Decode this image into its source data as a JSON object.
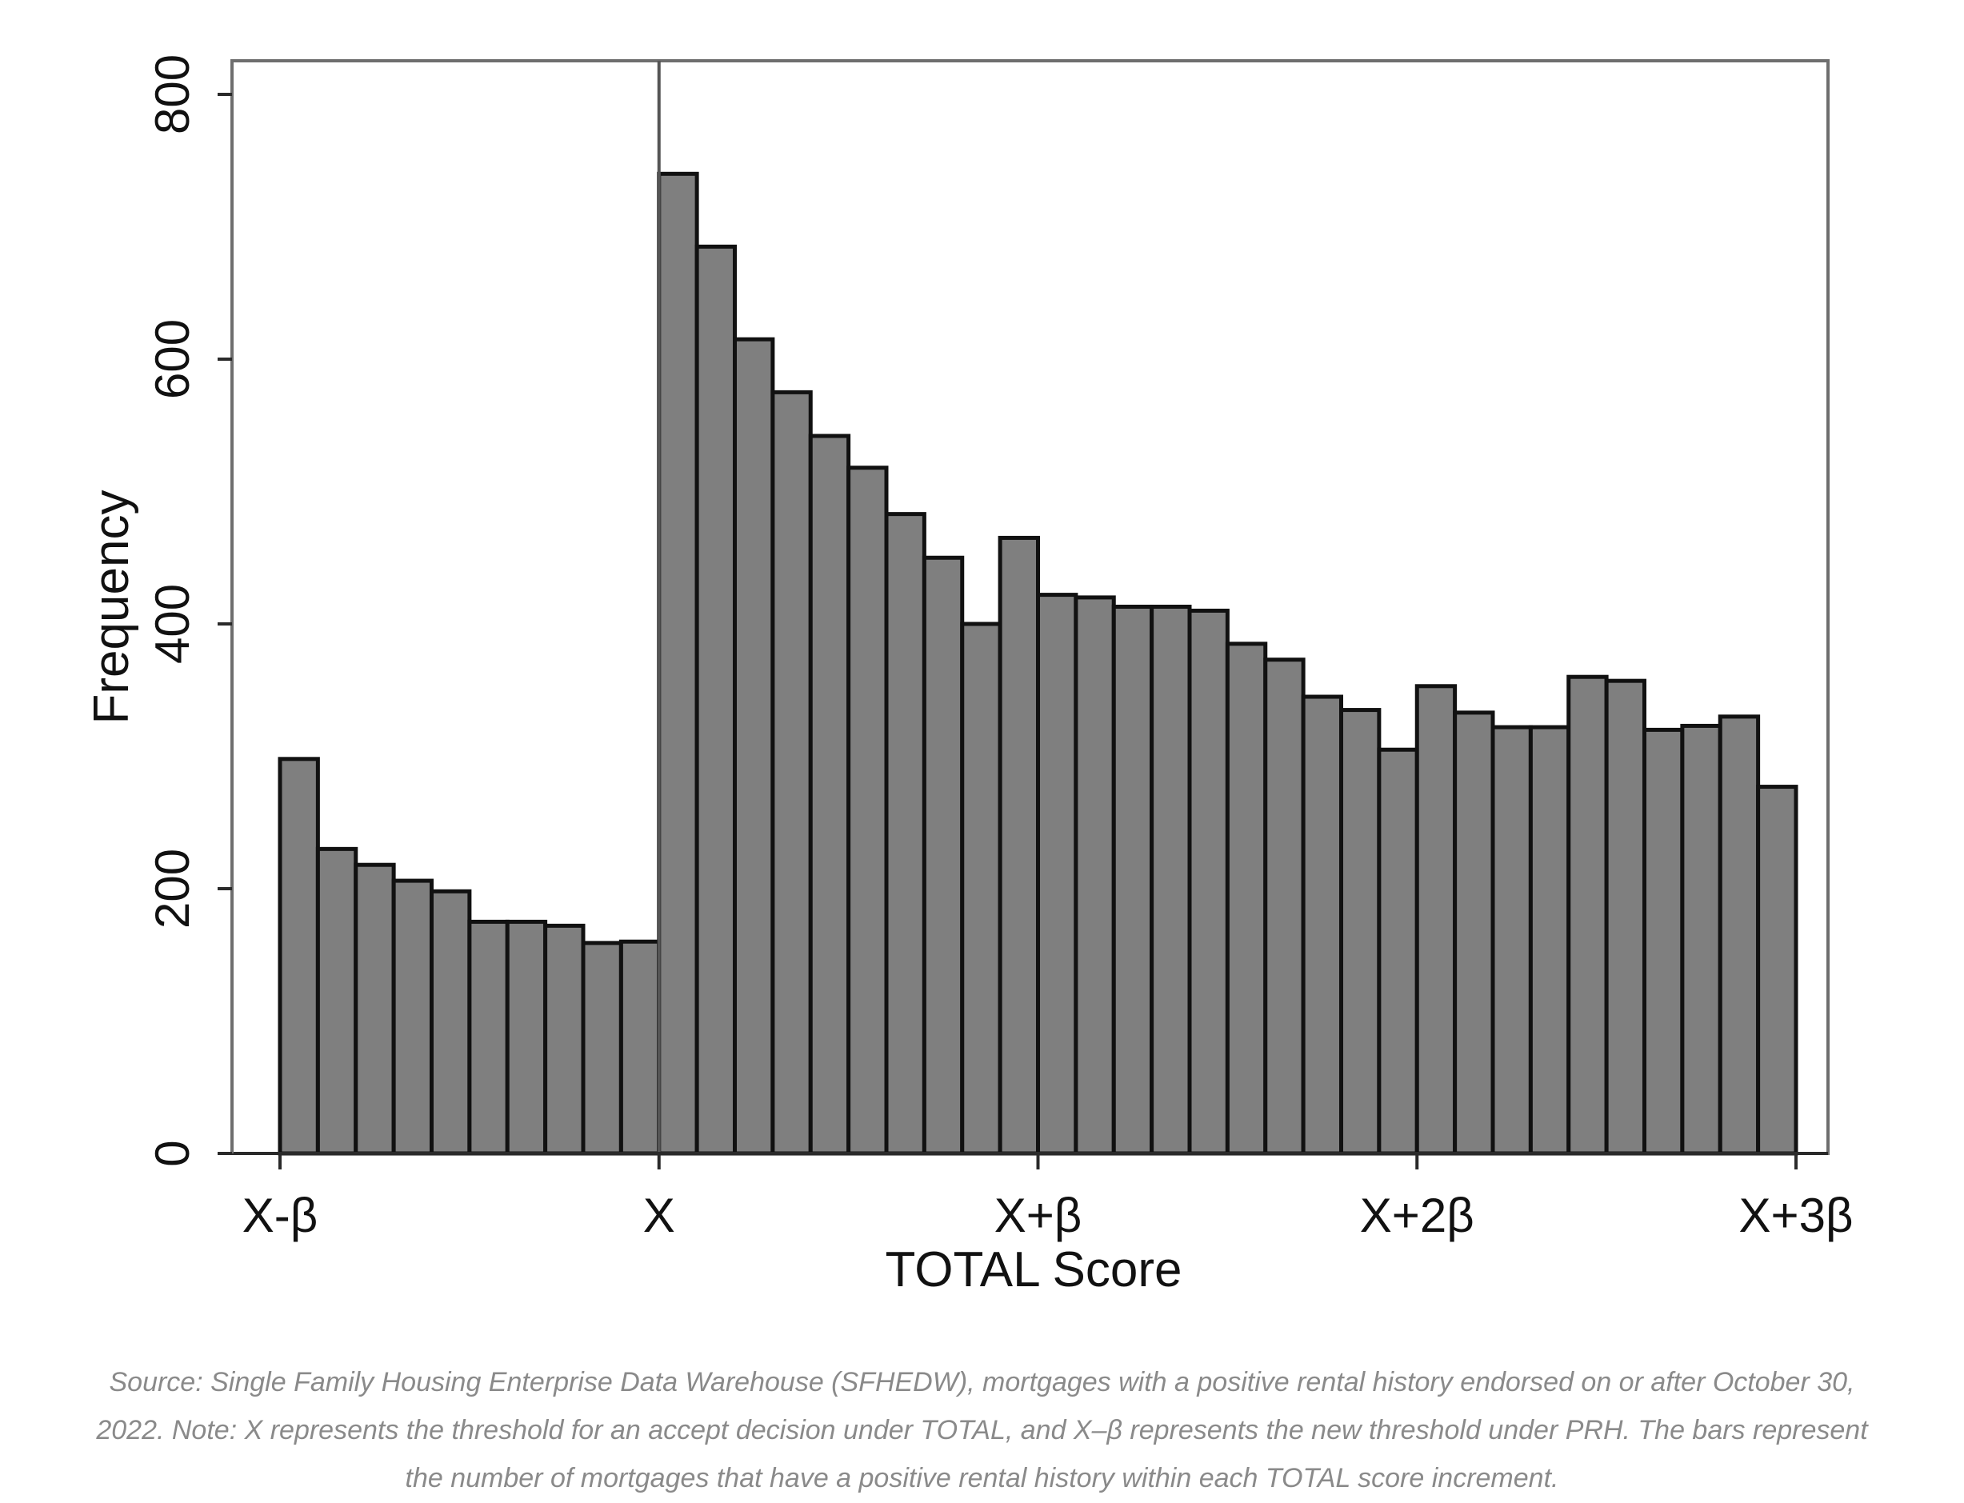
{
  "chart_data": {
    "type": "bar",
    "xlabel": "TOTAL Score",
    "ylabel": "Frequency",
    "ylim": [
      0,
      830
    ],
    "yticks": [
      0,
      200,
      400,
      600,
      800
    ],
    "xtick_labels": [
      "X-β",
      "X",
      "X+β",
      "X+2β",
      "X+3β"
    ],
    "threshold_label": "X",
    "bins_per_beta": 10,
    "values": [
      298,
      230,
      218,
      206,
      198,
      175,
      175,
      172,
      159,
      160,
      740,
      685,
      615,
      575,
      542,
      518,
      483,
      450,
      400,
      465,
      422,
      420,
      413,
      413,
      410,
      385,
      373,
      345,
      335,
      305,
      353,
      333,
      322,
      322,
      360,
      357,
      320,
      323,
      330,
      277
    ],
    "bar_color": "#7f7f7f",
    "grid": false,
    "legend": "none"
  },
  "caption": "Source: Single Family Housing Enterprise Data Warehouse (SFHEDW), mortgages with a positive rental history endorsed on or after October 30, 2022. Note: X represents the threshold for an accept decision under TOTAL, and X–β represents the new threshold under PRH. The bars represent the number of mortgages that have a positive rental history within each TOTAL score increment."
}
